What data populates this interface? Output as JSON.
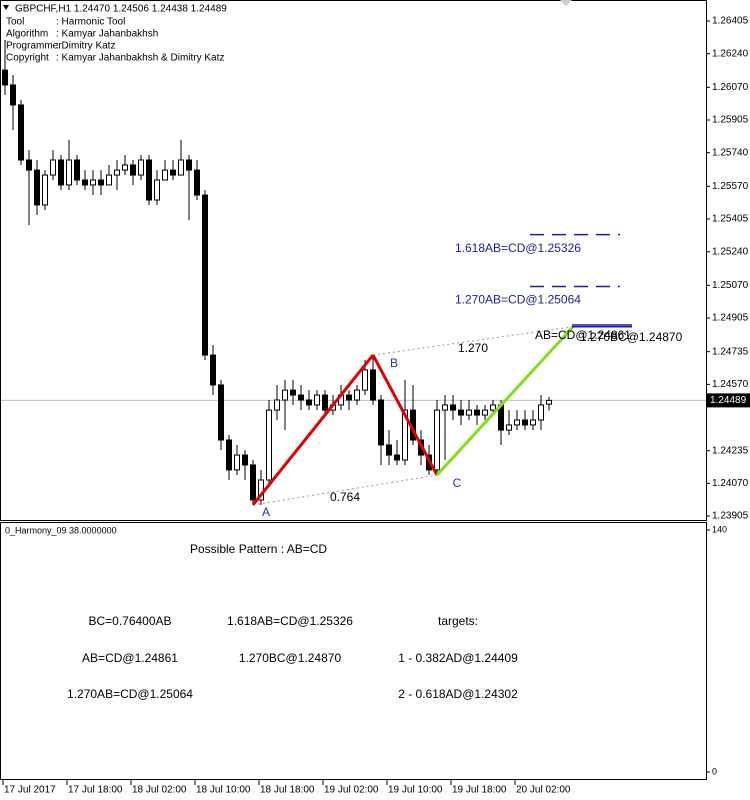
{
  "chart_data": {
    "type": "candlestick",
    "title": "GBPCHF,H1  1.24470 1.24506 1.24438 1.24489",
    "info": [
      {
        "label": "Tool",
        "value": ": Harmonic Tool"
      },
      {
        "label": "Algorithm",
        "value": ": Kamyar Jahanbakhsh"
      },
      {
        "label": "Programmer",
        "value": ": Dimitry Katz"
      },
      {
        "label": "Copyright",
        "value": ": Kamyar Jahanbakhsh & Dimitry Katz"
      }
    ],
    "categories": [
      "17 Jul 2017",
      null,
      null,
      null,
      null,
      null,
      null,
      null,
      "17 Jul 18:00",
      null,
      null,
      null,
      null,
      null,
      null,
      null,
      "18 Jul 02:00",
      null,
      null,
      null,
      null,
      null,
      null,
      null,
      "18 Jul 10:00",
      null,
      null,
      null,
      null,
      null,
      null,
      null,
      "18 Jul 18:00",
      null,
      null,
      null,
      null,
      null,
      null,
      null,
      "19 Jul 02:00",
      null,
      null,
      null,
      null,
      null,
      null,
      null,
      "19 Jul 10:00",
      null,
      null,
      null,
      null,
      null,
      null,
      null,
      "19 Jul 18:00",
      null,
      null,
      null,
      null,
      null,
      null,
      null,
      "20 Jul 02:00",
      null,
      null,
      null,
      null
    ],
    "open": [
      1.26157,
      1.26082,
      1.25981,
      1.25703,
      1.25652,
      1.25476,
      1.25627,
      1.25703,
      1.25577,
      1.25703,
      1.25602,
      1.25577,
      1.25602,
      1.25577,
      1.25627,
      1.25652,
      1.25678,
      1.25627,
      1.25703,
      1.25501,
      1.25602,
      1.25652,
      1.25627,
      1.25703,
      1.25652,
      1.25526,
      1.24718,
      1.24567,
      1.24289,
      1.24138,
      1.24213,
      1.24163,
      1.23986,
      1.24087,
      1.2444,
      1.24491,
      1.24541,
      1.24516,
      1.24491,
      1.24466,
      1.24516,
      1.2444,
      1.24466,
      1.24516,
      1.24491,
      1.24541,
      1.24643,
      1.24491,
      1.24264,
      1.24213,
      1.24188,
      1.2444,
      1.24289,
      1.24213,
      1.24138,
      1.2444,
      1.24466,
      1.2444,
      1.24415,
      1.2444,
      1.24415,
      1.2444,
      1.24466,
      1.24339,
      1.24365,
      1.2439,
      1.24365,
      1.2439,
      1.2447
    ],
    "high": [
      1.26309,
      1.26132,
      1.26006,
      1.25753,
      1.25703,
      1.25652,
      1.25753,
      1.25728,
      1.25804,
      1.25728,
      1.25652,
      1.25652,
      1.25652,
      1.25678,
      1.25703,
      1.25728,
      1.25703,
      1.25728,
      1.25728,
      1.25652,
      1.25703,
      1.25703,
      1.25804,
      1.25728,
      1.25703,
      1.25551,
      1.24769,
      1.24592,
      1.24314,
      1.24264,
      1.24238,
      1.24188,
      1.24138,
      1.24491,
      1.24567,
      1.24592,
      1.24592,
      1.24567,
      1.24541,
      1.24541,
      1.24541,
      1.24516,
      1.24567,
      1.24541,
      1.24567,
      1.24693,
      1.24718,
      1.24516,
      1.24339,
      1.24289,
      1.24592,
      1.24567,
      1.24339,
      1.24264,
      1.24491,
      1.24516,
      1.24516,
      1.24491,
      1.24491,
      1.24466,
      1.24466,
      1.24491,
      1.24491,
      1.2444,
      1.2444,
      1.2444,
      1.2444,
      1.24516,
      1.24506
    ],
    "low": [
      1.26031,
      1.25854,
      1.25678,
      1.25375,
      1.25425,
      1.2545,
      1.25602,
      1.25551,
      1.25551,
      1.25577,
      1.25551,
      1.25526,
      1.25526,
      1.25577,
      1.25551,
      1.25627,
      1.25577,
      1.25602,
      1.25476,
      1.25476,
      1.25602,
      1.25602,
      1.25627,
      1.254,
      1.25501,
      1.24693,
      1.24516,
      1.24238,
      1.24087,
      1.24112,
      1.24087,
      1.23961,
      1.23961,
      1.24062,
      1.2439,
      1.24339,
      1.24466,
      1.2444,
      1.2444,
      1.2444,
      1.24415,
      1.24415,
      1.2444,
      1.2444,
      1.24466,
      1.24516,
      1.24466,
      1.24163,
      1.24163,
      1.24163,
      1.24163,
      1.24264,
      1.24163,
      1.24112,
      1.24112,
      1.24188,
      1.2439,
      1.24365,
      1.2439,
      1.24365,
      1.2439,
      1.24415,
      1.24264,
      1.24314,
      1.24339,
      1.24339,
      1.24339,
      1.24339,
      1.24438
    ],
    "close": [
      1.26082,
      1.25981,
      1.25703,
      1.25652,
      1.25476,
      1.25627,
      1.25703,
      1.25577,
      1.25703,
      1.25602,
      1.25577,
      1.25602,
      1.25577,
      1.25627,
      1.25652,
      1.25678,
      1.25627,
      1.25703,
      1.25501,
      1.25602,
      1.25652,
      1.25627,
      1.25703,
      1.25652,
      1.25526,
      1.24718,
      1.24567,
      1.24289,
      1.24138,
      1.24213,
      1.24163,
      1.23986,
      1.24087,
      1.2444,
      1.24491,
      1.24541,
      1.24516,
      1.24491,
      1.24466,
      1.24516,
      1.2444,
      1.24466,
      1.24516,
      1.24491,
      1.24541,
      1.24643,
      1.24491,
      1.24264,
      1.24213,
      1.24188,
      1.2444,
      1.24289,
      1.24213,
      1.24138,
      1.2444,
      1.24466,
      1.2444,
      1.24415,
      1.2444,
      1.24415,
      1.2444,
      1.24466,
      1.24339,
      1.24365,
      1.2439,
      1.24365,
      1.2439,
      1.24466,
      1.24489
    ],
    "ylim": [
      1.23885,
      1.26511
    ],
    "yticks": [
      1.26405,
      {
        "value": 1.2624,
        "label": "1.26240"
      },
      {
        "value": 1.2607,
        "label": "1.26070"
      },
      1.25905,
      {
        "value": 1.2574,
        "label": "1.25740"
      },
      {
        "value": 1.2557,
        "label": "1.25570"
      },
      1.25405,
      {
        "value": 1.2524,
        "label": "1.25240"
      },
      {
        "value": 1.2507,
        "label": "1.25070"
      },
      1.24905,
      1.24735,
      {
        "value": 1.2457,
        "label": "1.24570"
      },
      1.24235,
      {
        "value": 1.2407,
        "label": "1.24070"
      },
      1.23905
    ],
    "current_price": 1.24489,
    "pattern": {
      "points": [
        {
          "label": "A",
          "bar": 31,
          "price": 1.23961
        },
        {
          "label": "B",
          "bar": 46,
          "price": 1.24718
        },
        {
          "label": "C",
          "bar": 54,
          "price": 1.24112
        },
        {
          "bar": 71,
          "price": 1.24861
        }
      ],
      "colors": [
        "#e00000",
        "#e00000",
        "#80e020"
      ],
      "ratios": [
        "0.764",
        "1.270"
      ]
    },
    "levels": [
      {
        "text": "1.618AB=CD@1.25326",
        "price": 1.25326,
        "style": "dashed",
        "color": "#1c1ca0"
      },
      {
        "text": "1.270AB=CD@1.25064",
        "price": 1.25064,
        "style": "dashed",
        "color": "#1c1ca0"
      },
      {
        "text": "AB=CD@1.24861",
        "price": 1.24861,
        "style": "solid",
        "color": "#000000"
      },
      {
        "text": "1.270BC@1.24870",
        "price": 1.2487,
        "style": "solid",
        "color": "#000000"
      }
    ],
    "indicator": {
      "name": "0_Harmony_09 38.0000000",
      "ylim": [
        0,
        140
      ],
      "yticks": [
        140,
        0
      ],
      "heading": "Possible Pattern : AB=CD",
      "columns": [
        [
          "BC=0.76400AB",
          "AB=CD@1.24861",
          "1.270AB=CD@1.25064"
        ],
        [
          "1.618AB=CD@1.25326",
          "1.270BC@1.24870"
        ],
        [
          "targets:",
          "1 - 0.382AD@1.24409",
          "2 - 0.618AD@1.24302"
        ]
      ]
    }
  }
}
